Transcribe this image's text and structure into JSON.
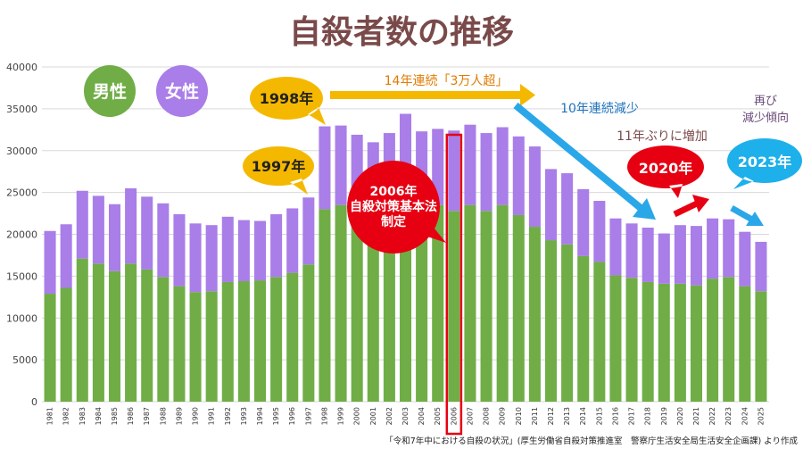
{
  "chart_data": {
    "type": "bar",
    "stacked": true,
    "title": "自殺者数の推移",
    "categories": [
      "1981",
      "1982",
      "1983",
      "1984",
      "1985",
      "1986",
      "1987",
      "1988",
      "1989",
      "1990",
      "1991",
      "1992",
      "1993",
      "1994",
      "1995",
      "1996",
      "1997",
      "1998",
      "1999",
      "2000",
      "2001",
      "2002",
      "2003",
      "2004",
      "2005",
      "2006",
      "2007",
      "2008",
      "2009",
      "2010",
      "2011",
      "2012",
      "2013",
      "2014",
      "2015",
      "2016",
      "2017",
      "2018",
      "2019",
      "2020",
      "2021",
      "2022",
      "2023",
      "2024",
      "2025"
    ],
    "series": [
      {
        "name": "男性",
        "color": "#70ad47",
        "values": [
          12900,
          13600,
          17100,
          16500,
          15600,
          16500,
          15800,
          14900,
          13800,
          13100,
          13200,
          14300,
          14400,
          14500,
          14900,
          15400,
          16400,
          23000,
          23500,
          23000,
          22100,
          22300,
          24000,
          23300,
          23500,
          22800,
          23500,
          22800,
          23500,
          22300,
          20900,
          19300,
          18800,
          17400,
          16700,
          15100,
          14800,
          14300,
          14100,
          14100,
          13900,
          14700,
          14900,
          13800,
          13200
        ]
      },
      {
        "name": "女性",
        "color": "#a97ee8",
        "values": [
          7500,
          7600,
          8100,
          8100,
          8000,
          9000,
          8700,
          8800,
          8600,
          8200,
          7900,
          7800,
          7300,
          7100,
          7500,
          7700,
          8000,
          9900,
          9500,
          8900,
          8900,
          9800,
          10400,
          9000,
          9100,
          9600,
          9600,
          9300,
          9300,
          9400,
          9600,
          8500,
          8500,
          8000,
          7300,
          6800,
          6500,
          6500,
          6000,
          7000,
          7100,
          7200,
          6900,
          6500,
          5900
        ]
      }
    ],
    "ylim": [
      0,
      40000
    ],
    "yticks": [
      0,
      5000,
      10000,
      15000,
      20000,
      25000,
      30000,
      35000,
      40000
    ],
    "grid": true,
    "highlight_category": "2006"
  },
  "legend": {
    "male": "男性",
    "female": "女性"
  },
  "annotations": {
    "y1997": "1997年",
    "y1998": "1998年",
    "over30k": "14年連続「3万人超」",
    "law": [
      "2006年",
      "自殺対策基本法",
      "制定"
    ],
    "decrease10": "10年連続減少",
    "increase11": "11年ぶりに増加",
    "y2020": "2020年",
    "again_decrease": [
      "再び",
      "減少傾向"
    ],
    "y2023": "2023年"
  },
  "source": "「令和7年中における自殺の状況」(厚生労働省自殺対策推進室　警察庁生活安全局生活安全企画課) より作成",
  "colors": {
    "title": "#7a4a4a",
    "orange": "#f5b800",
    "red": "#e60012",
    "blue": "#1eb0ea",
    "arrow_orange": "#f5b800",
    "arrow_blue": "#2aa7e8"
  }
}
